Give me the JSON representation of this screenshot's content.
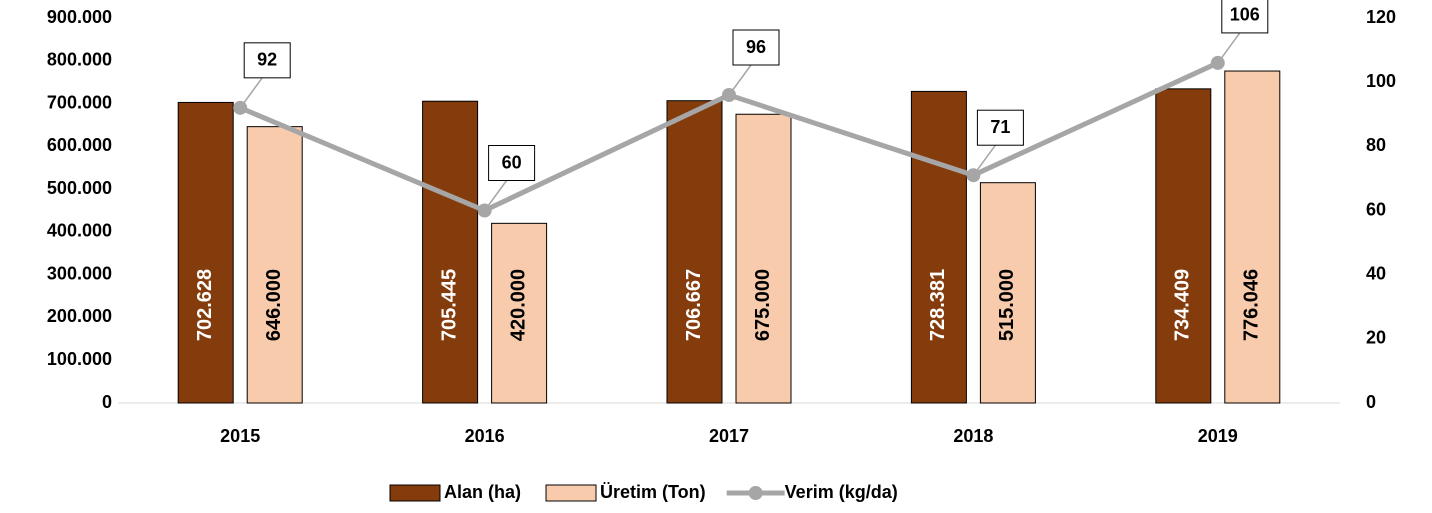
{
  "chart_data": {
    "type": "bar_line",
    "categories": [
      "2015",
      "2016",
      "2017",
      "2018",
      "2019"
    ],
    "series": [
      {
        "name": "Alan (ha)",
        "color": "#843c0c",
        "values": [
          702628,
          705445,
          706667,
          728381,
          734409
        ],
        "value_labels": [
          "702.628",
          "705.445",
          "706.667",
          "728.381",
          "734.409"
        ]
      },
      {
        "name": "Üretim (Ton)",
        "color": "#f8cbad",
        "values": [
          646000,
          420000,
          675000,
          515000,
          776046
        ],
        "value_labels": [
          "646.000",
          "420.000",
          "675.000",
          "515.000",
          "776.046"
        ]
      },
      {
        "name": "Verim (kg/da)",
        "color": "#a6a6a6",
        "axis": "y2",
        "values": [
          92,
          60,
          96,
          71,
          106
        ]
      }
    ],
    "ylim": [
      0,
      900000
    ],
    "yticks": [
      0,
      {
        "value": 100000,
        "label": "100.000"
      },
      {
        "value": 200000,
        "label": "200.000"
      },
      {
        "value": 300000,
        "label": "300.000"
      },
      {
        "value": 400000,
        "label": "400.000"
      },
      {
        "value": 500000,
        "label": "500.000"
      },
      {
        "value": 600000,
        "label": "600.000"
      },
      {
        "value": 700000,
        "label": "700.000"
      },
      {
        "value": 800000,
        "label": "800.000"
      },
      {
        "value": 900000,
        "label": "900.000"
      }
    ],
    "y2lim": [
      0,
      120
    ],
    "y2ticks": [
      0,
      20,
      40,
      60,
      80,
      100,
      120
    ]
  }
}
